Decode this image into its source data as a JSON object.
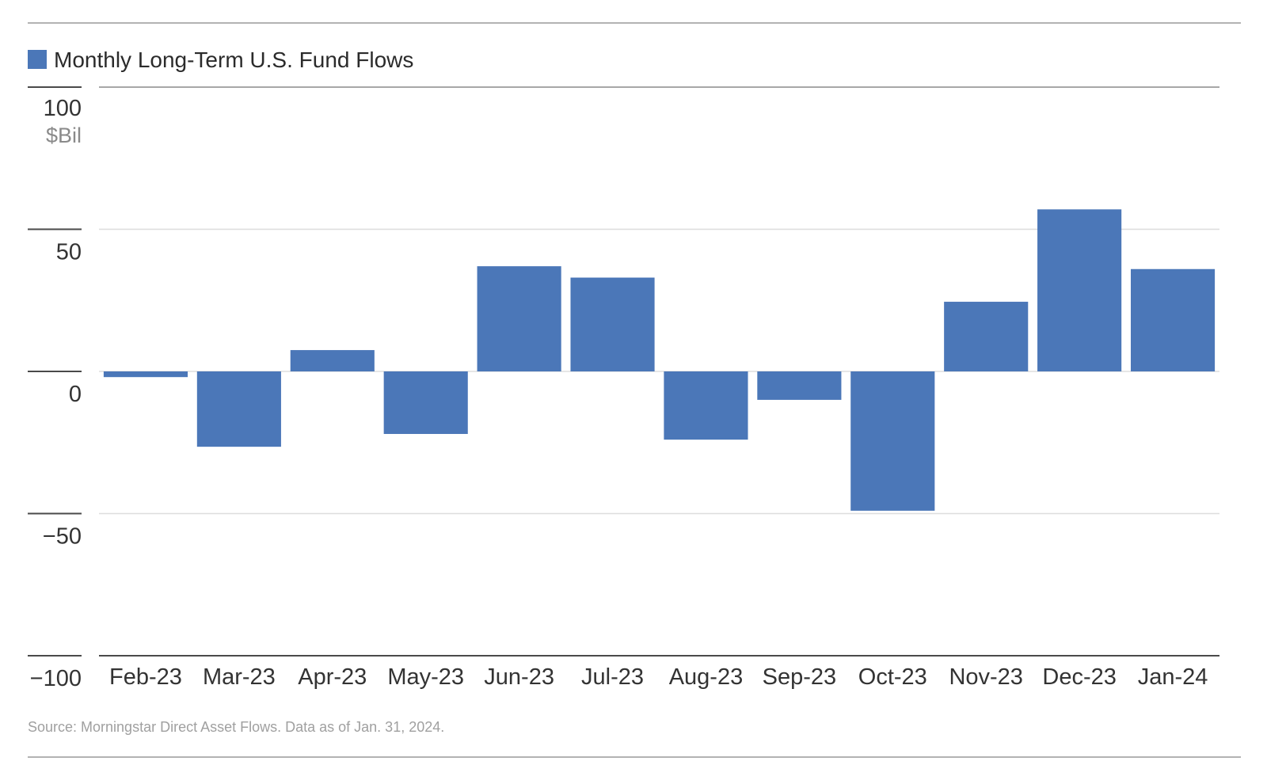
{
  "chart_data": {
    "type": "bar",
    "legend": "Monthly Long-Term U.S. Fund Flows",
    "legend_position": "top-left",
    "unit_label": "$Bil",
    "categories": [
      "Feb-23",
      "Mar-23",
      "Apr-23",
      "May-23",
      "Jun-23",
      "Jul-23",
      "Aug-23",
      "Sep-23",
      "Oct-23",
      "Nov-23",
      "Dec-23",
      "Jan-24"
    ],
    "series": [
      {
        "name": "Monthly Long-Term U.S. Fund Flows",
        "color": "#4b77b8",
        "values": [
          -2,
          -26.5,
          7.5,
          -22,
          37,
          33,
          -24,
          -10,
          -49,
          24.5,
          57,
          36
        ]
      }
    ],
    "ylim": [
      -100,
      100
    ],
    "yticks": [
      {
        "value": 100,
        "label": "100"
      },
      {
        "value": 50,
        "label": "50"
      },
      {
        "value": 0,
        "label": "0"
      },
      {
        "value": -50,
        "label": "−50"
      },
      {
        "value": -100,
        "label": "−100"
      }
    ],
    "grid": true,
    "source": "Source: Morningstar Direct Asset Flows. Data as of Jan. 31, 2024."
  }
}
